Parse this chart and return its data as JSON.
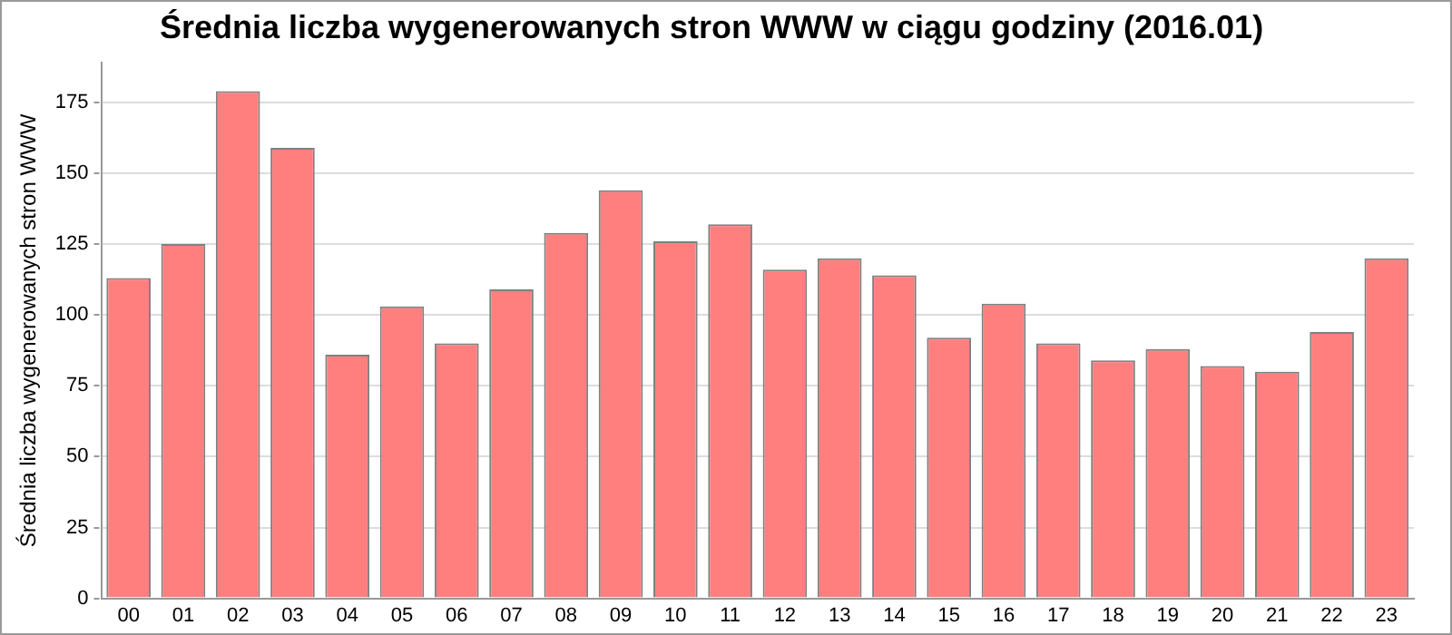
{
  "chart_data": {
    "type": "bar",
    "title": "Średnia liczba wygenerowanych stron WWW w ciągu godziny (2016.01)",
    "ylabel": "Średnia liczba wygenerowanych stron WWW",
    "categories": [
      "00",
      "01",
      "02",
      "03",
      "04",
      "05",
      "06",
      "07",
      "08",
      "09",
      "10",
      "11",
      "12",
      "13",
      "14",
      "15",
      "16",
      "17",
      "18",
      "19",
      "20",
      "21",
      "22",
      "23"
    ],
    "values": [
      113,
      125,
      179,
      159,
      86,
      103,
      90,
      109,
      129,
      144,
      126,
      132,
      116,
      120,
      114,
      92,
      104,
      90,
      84,
      88,
      82,
      80,
      94,
      120
    ],
    "color": "#ff7f7f",
    "ylim": [
      0,
      189
    ],
    "yticks": [
      0,
      25,
      50,
      75,
      100,
      125,
      150,
      175
    ],
    "grid": "y",
    "legend": false
  }
}
